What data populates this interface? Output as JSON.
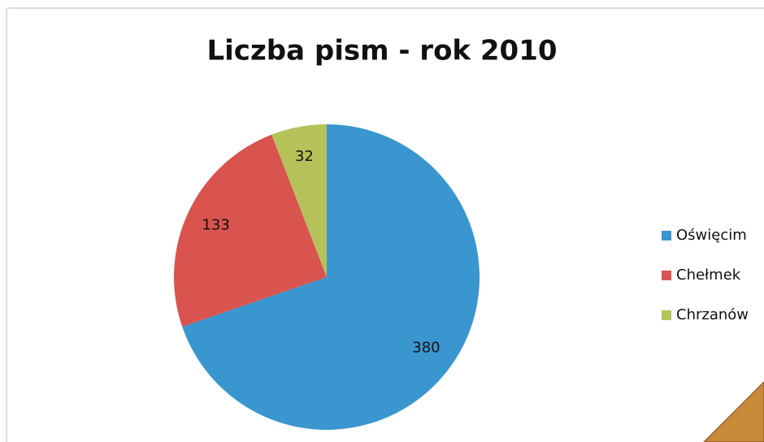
{
  "chart_data": {
    "type": "pie",
    "title": "Liczba pism - rok 2010",
    "categories": [
      "Oświęcim",
      "Chełmek",
      "Chrzanów"
    ],
    "values": [
      380,
      133,
      32
    ],
    "colors": [
      "#3a96cf",
      "#d9534f",
      "#b5c25a"
    ]
  }
}
